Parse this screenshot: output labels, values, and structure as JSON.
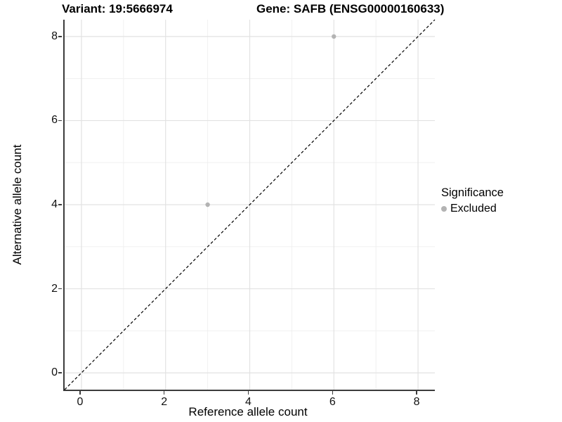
{
  "titles": {
    "variant": "Variant: 19:5666974",
    "gene": "Gene: SAFB (ENSG00000160633)"
  },
  "axes": {
    "x_label": "Reference allele count",
    "y_label": "Alternative allele count"
  },
  "legend": {
    "title": "Significance",
    "items": [
      {
        "label": "Excluded",
        "color": "#b3b3b3"
      }
    ]
  },
  "colors": {
    "background": "#ffffff",
    "grid_major": "#e2e2e2",
    "grid_minor": "#f0f0f0",
    "axis_line": "#3c3c3c",
    "point": "#b3b3b3",
    "reference_line": "#000000"
  },
  "chart_data": {
    "type": "scatter",
    "title": "Variant: 19:5666974 / Gene: SAFB (ENSG00000160633)",
    "xlabel": "Reference allele count",
    "ylabel": "Alternative allele count",
    "xlim": [
      -0.4,
      8.4
    ],
    "ylim": [
      -0.4,
      8.4
    ],
    "xticks": [
      0,
      2,
      4,
      6,
      8
    ],
    "yticks": [
      0,
      2,
      4,
      6,
      8
    ],
    "xminor": [
      1,
      3,
      5,
      7
    ],
    "yminor": [
      1,
      3,
      5,
      7
    ],
    "grid": true,
    "legend_position": "right",
    "series": [
      {
        "name": "Excluded",
        "color": "#b3b3b3",
        "points": [
          {
            "x": 3,
            "y": 4
          },
          {
            "x": 6,
            "y": 8
          }
        ]
      }
    ],
    "reference_line": {
      "slope": 1,
      "intercept": 0,
      "style": "dashed",
      "color": "#000000"
    }
  }
}
